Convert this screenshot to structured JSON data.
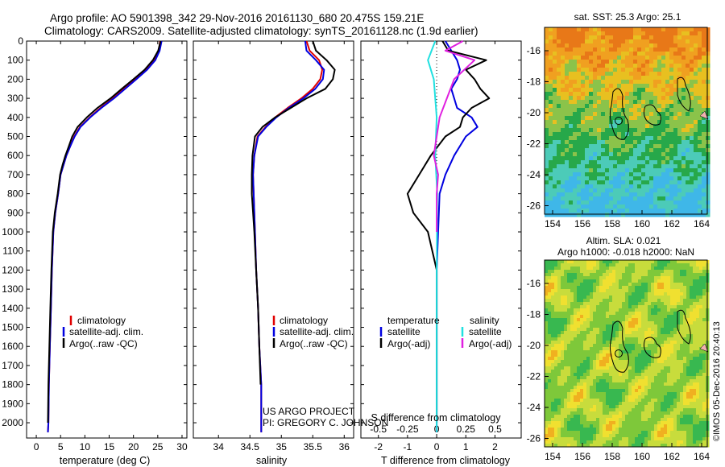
{
  "header": {
    "line1": "Argo profile: AO 5901398_342 29-Nov-2016 20161130_680 20.475S 159.21E",
    "line2": "Climatology: CARS2009. Satellite-adjusted climatology: synTS_20161128.nc (1.9d earlier)"
  },
  "colors": {
    "climatology": "#e00000",
    "satellite": "#0000e0",
    "argo": "#000000",
    "argo_salinity": "#e020e0",
    "satellite_salinity": "#20e0e0"
  },
  "chart_data": [
    {
      "type": "line",
      "name": "temperature-profile",
      "xlabel": "temperature (deg C)",
      "ylabel": "",
      "xlim": [
        -2,
        31
      ],
      "ylim": [
        2080,
        0
      ],
      "xticks": [
        0,
        5,
        10,
        15,
        20,
        25,
        30
      ],
      "yticks": [
        0,
        100,
        200,
        300,
        400,
        500,
        600,
        700,
        800,
        900,
        1000,
        1100,
        1200,
        1300,
        1400,
        1500,
        1600,
        1700,
        1800,
        1900,
        2000
      ],
      "legend": [
        "climatology",
        "satellite-adj. clim.",
        "Argo(..raw -QC)"
      ],
      "series": [
        {
          "name": "climatology",
          "color": "red",
          "x": [
            25.5,
            25.2,
            24.3,
            22.5,
            20.3,
            18.0,
            15.8,
            13.2,
            11.0,
            9.0,
            7.8,
            7.0,
            6.2,
            5.6,
            5.0,
            4.5,
            3.9,
            3.5,
            3.2,
            3.0,
            2.8,
            2.6,
            2.5,
            2.4
          ],
          "y": [
            0,
            50,
            100,
            150,
            200,
            250,
            300,
            350,
            400,
            450,
            500,
            550,
            600,
            650,
            700,
            800,
            900,
            1000,
            1200,
            1400,
            1600,
            1800,
            2000,
            2050
          ]
        },
        {
          "name": "satellite-adj. clim.",
          "color": "blue",
          "x": [
            25.8,
            25.4,
            24.5,
            22.8,
            20.6,
            18.3,
            16.0,
            13.4,
            11.1,
            9.1,
            7.9,
            7.0,
            6.2,
            5.6,
            5.0,
            4.5,
            3.9,
            3.5,
            3.2,
            3.0,
            2.8,
            2.6,
            2.5,
            2.4
          ],
          "y": [
            0,
            50,
            100,
            150,
            200,
            250,
            300,
            350,
            400,
            450,
            500,
            550,
            600,
            650,
            700,
            800,
            900,
            1000,
            1200,
            1400,
            1600,
            1800,
            2000,
            2050
          ]
        },
        {
          "name": "Argo(..raw -QC)",
          "color": "black",
          "x": [
            25.6,
            25.1,
            24.0,
            22.3,
            20.0,
            17.6,
            15.3,
            12.6,
            10.4,
            8.5,
            7.4,
            6.7,
            6.0,
            5.4,
            4.9,
            4.4,
            3.8,
            3.4,
            3.1,
            2.9,
            2.7,
            2.5,
            2.4
          ],
          "y": [
            0,
            50,
            100,
            150,
            200,
            250,
            300,
            350,
            400,
            450,
            500,
            550,
            600,
            650,
            700,
            800,
            900,
            1000,
            1200,
            1400,
            1600,
            1800,
            2000
          ]
        }
      ]
    },
    {
      "type": "line",
      "name": "salinity-profile",
      "xlabel": "salinity",
      "ylabel": "",
      "xlim": [
        33.6,
        36.15
      ],
      "ylim": [
        2080,
        0
      ],
      "xticks": [
        34,
        34.5,
        35,
        35.5,
        36
      ],
      "legend": [
        "climatology",
        "satellite-adj. clim.",
        "Argo(..raw -QC)"
      ],
      "series": [
        {
          "name": "climatology",
          "color": "red",
          "x": [
            35.4,
            35.45,
            35.6,
            35.65,
            35.62,
            35.5,
            35.32,
            35.1,
            34.9,
            34.75,
            34.62,
            34.57,
            34.55,
            34.56,
            34.58,
            34.6,
            34.63,
            34.65,
            34.68,
            34.68
          ],
          "y": [
            0,
            50,
            100,
            150,
            200,
            250,
            300,
            350,
            400,
            450,
            500,
            600,
            700,
            800,
            1000,
            1200,
            1400,
            1600,
            1800,
            2050
          ]
        },
        {
          "name": "satellite-adj. clim.",
          "color": "blue",
          "x": [
            35.38,
            35.4,
            35.55,
            35.68,
            35.66,
            35.54,
            35.35,
            35.12,
            34.92,
            34.76,
            34.63,
            34.57,
            34.55,
            34.56,
            34.58,
            34.6,
            34.63,
            34.65,
            34.68,
            34.68
          ],
          "y": [
            0,
            50,
            100,
            150,
            200,
            250,
            300,
            350,
            400,
            450,
            500,
            600,
            700,
            800,
            1000,
            1200,
            1400,
            1600,
            1800,
            2050
          ]
        },
        {
          "name": "Argo(..raw -QC)",
          "color": "black",
          "x": [
            35.5,
            35.55,
            35.72,
            35.85,
            35.82,
            35.7,
            35.4,
            35.15,
            34.9,
            34.7,
            34.58,
            34.54,
            34.53,
            34.53,
            34.57,
            34.6,
            34.63,
            34.65,
            34.67
          ],
          "y": [
            0,
            50,
            100,
            150,
            200,
            250,
            300,
            350,
            400,
            450,
            500,
            600,
            700,
            800,
            1000,
            1200,
            1400,
            1600,
            1800
          ]
        }
      ]
    },
    {
      "type": "line",
      "name": "difference-profile",
      "xlabel": "T difference from climatology",
      "xlabel_top": "S difference from climatology",
      "xlim": [
        -2.6,
        2.9
      ],
      "ylim": [
        2080,
        0
      ],
      "xticks": [
        -2,
        -1,
        0,
        1,
        2
      ],
      "xticks_top": [
        -0.5,
        -0.25,
        0,
        0.25,
        0.5
      ],
      "legend_titles": [
        "temperature",
        "salinity"
      ],
      "legend": [
        "satellite",
        "Argo(-adj)",
        "satellite",
        "Argo(-adj)"
      ],
      "series": [
        {
          "name": "satellite",
          "color": "blue",
          "x": [
            0.3,
            0.5,
            0.7,
            0.8,
            0.7,
            0.5,
            0.6,
            0.7,
            1.2,
            1.4,
            1.0,
            0.6,
            0.3,
            0.1,
            0.05,
            0.0,
            0.0,
            0.0
          ],
          "y": [
            0,
            50,
            100,
            150,
            200,
            250,
            300,
            350,
            400,
            450,
            500,
            600,
            700,
            800,
            1000,
            1200,
            1600,
            2050
          ]
        },
        {
          "name": "Argo(-adj)",
          "color": "black",
          "x": [
            0.2,
            0.4,
            1.7,
            1.0,
            1.3,
            1.5,
            1.8,
            1.2,
            0.9,
            0.8,
            0.3,
            -0.2,
            -0.6,
            -1.0,
            -0.8,
            -0.3,
            0.0,
            0.0
          ],
          "y": [
            0,
            50,
            100,
            150,
            200,
            250,
            300,
            350,
            400,
            450,
            500,
            600,
            700,
            800,
            900,
            1000,
            1200,
            2000
          ]
        },
        {
          "name": "satellite",
          "color": "cyan",
          "x": [
            -0.05,
            -0.3,
            -0.1,
            0.0,
            -0.05,
            0.02,
            0.0,
            0.0
          ],
          "y": [
            0,
            100,
            200,
            400,
            600,
            800,
            1200,
            2050
          ]
        },
        {
          "name": "Argo(-adj)",
          "color": "magenta",
          "x": [
            0.9,
            0.3,
            1.3,
            0.6,
            0.1,
            0.0,
            -0.1,
            0.05,
            0.0,
            0.0
          ],
          "y": [
            0,
            50,
            100,
            200,
            400,
            500,
            600,
            700,
            800,
            1000
          ]
        }
      ]
    }
  ],
  "maps": {
    "sst": {
      "title": "sat. SST: 25.3 Argo: 25.1",
      "xticks": [
        "154",
        "156",
        "158",
        "160",
        "162",
        "164"
      ],
      "yticks": [
        "-16",
        "-18",
        "-20",
        "-22",
        "-24",
        "-26"
      ]
    },
    "sla": {
      "title_line1": "Altim. SLA: 0.021",
      "title_line2": "Argo h1000: -0.018 h2000: NaN",
      "xticks": [
        "154",
        "156",
        "158",
        "160",
        "162",
        "164"
      ],
      "yticks": [
        "-16",
        "-18",
        "-20",
        "-22",
        "-24",
        "-26"
      ]
    }
  },
  "footer": {
    "project": "US ARGO PROJECT",
    "pi": "PI: GREGORY C. JOHNSON",
    "credit": "©IMOS 05-Dec-2016 20:40:13"
  }
}
